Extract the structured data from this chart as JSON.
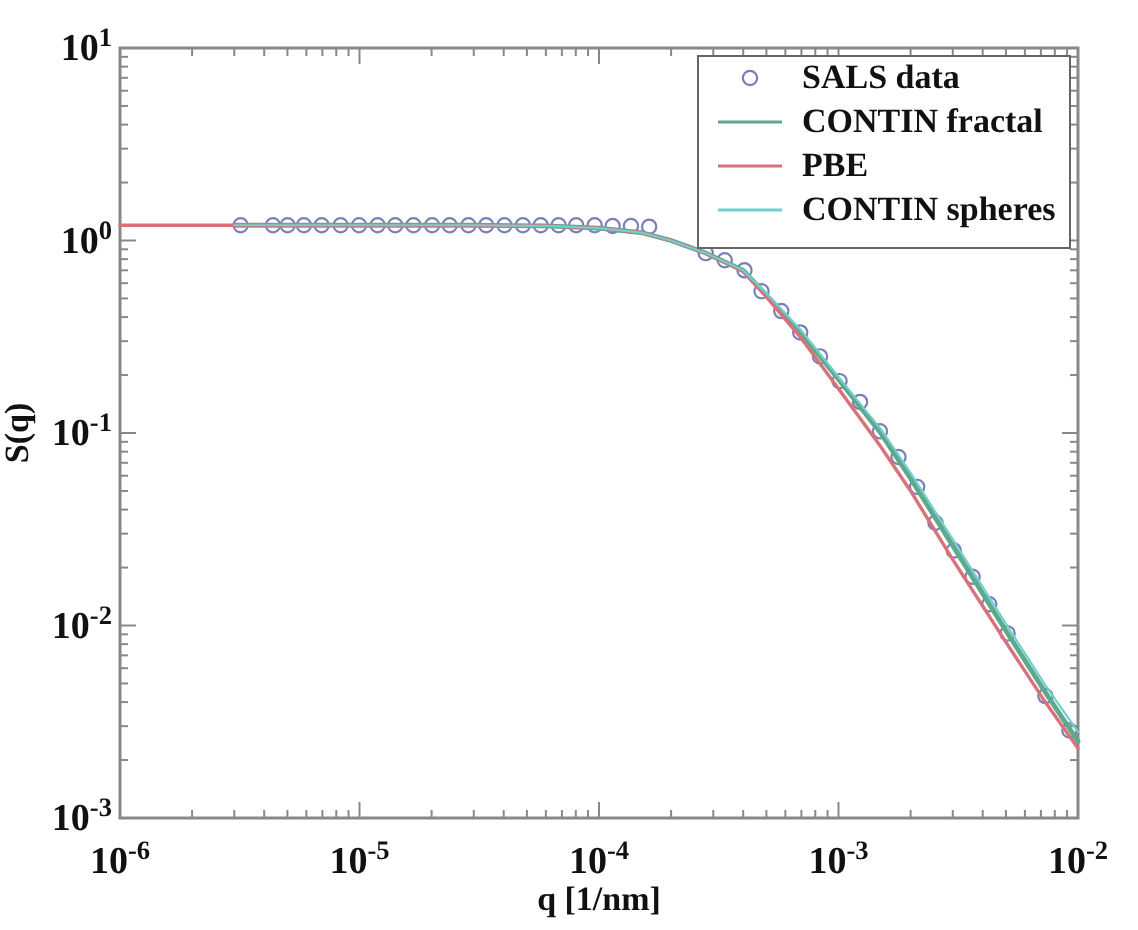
{
  "chart_data": {
    "type": "line",
    "xlabel": "q [1/nm]",
    "ylabel": "S(q)",
    "log": "xy",
    "legend": "top right",
    "grid": false,
    "xlim": [
      1e-06,
      0.01
    ],
    "ylim": [
      0.001,
      10
    ],
    "xticks": [
      {
        "value": 1e-06,
        "label": "10$^{-6}$"
      },
      {
        "value": 2e-06,
        "label": null
      },
      {
        "value": 3e-06,
        "label": null
      },
      {
        "value": 4e-06,
        "label": null
      },
      {
        "value": 5e-06,
        "label": null
      },
      {
        "value": 6e-06,
        "label": null
      },
      {
        "value": 7e-06,
        "label": null
      },
      {
        "value": 8e-06,
        "label": null
      },
      {
        "value": 9e-06,
        "label": null
      },
      {
        "value": 1e-05,
        "label": "10$^{-5}$"
      },
      {
        "value": 2e-05,
        "label": null
      },
      {
        "value": 3e-05,
        "label": null
      },
      {
        "value": 4e-05,
        "label": null
      },
      {
        "value": 5e-05,
        "label": null
      },
      {
        "value": 6e-05,
        "label": null
      },
      {
        "value": 7e-05,
        "label": null
      },
      {
        "value": 8e-05,
        "label": null
      },
      {
        "value": 9e-05,
        "label": null
      },
      {
        "value": 0.0001,
        "label": "10$^{-4}$"
      },
      {
        "value": 0.0002,
        "label": null
      },
      {
        "value": 0.0003,
        "label": null
      },
      {
        "value": 0.0004,
        "label": null
      },
      {
        "value": 0.0005,
        "label": null
      },
      {
        "value": 0.0006,
        "label": null
      },
      {
        "value": 0.0007,
        "label": null
      },
      {
        "value": 0.0008,
        "label": null
      },
      {
        "value": 0.0009,
        "label": null
      },
      {
        "value": 0.001,
        "label": "10$^{-3}$"
      },
      {
        "value": 0.002,
        "label": null
      },
      {
        "value": 0.003,
        "label": null
      },
      {
        "value": 0.004,
        "label": null
      },
      {
        "value": 0.005,
        "label": null
      },
      {
        "value": 0.006,
        "label": null
      },
      {
        "value": 0.007,
        "label": null
      },
      {
        "value": 0.008,
        "label": null
      },
      {
        "value": 0.009,
        "label": null
      },
      {
        "value": 0.01,
        "label": "10$^{-2}$"
      }
    ],
    "yticks": [
      {
        "value": 0.001,
        "label": "10$^{-3}$"
      },
      {
        "value": 0.002,
        "label": null
      },
      {
        "value": 0.003,
        "label": null
      },
      {
        "value": 0.004,
        "label": null
      },
      {
        "value": 0.005,
        "label": null
      },
      {
        "value": 0.006,
        "label": null
      },
      {
        "value": 0.007,
        "label": null
      },
      {
        "value": 0.008,
        "label": null
      },
      {
        "value": 0.009,
        "label": null
      },
      {
        "value": 0.01,
        "label": "10$^{-2}$"
      },
      {
        "value": 0.02,
        "label": null
      },
      {
        "value": 0.03,
        "label": null
      },
      {
        "value": 0.04,
        "label": null
      },
      {
        "value": 0.05,
        "label": null
      },
      {
        "value": 0.06,
        "label": null
      },
      {
        "value": 0.07,
        "label": null
      },
      {
        "value": 0.08,
        "label": null
      },
      {
        "value": 0.09,
        "label": null
      },
      {
        "value": 0.1,
        "label": "10$^{-1}$"
      },
      {
        "value": 0.2,
        "label": null
      },
      {
        "value": 0.3,
        "label": null
      },
      {
        "value": 0.4,
        "label": null
      },
      {
        "value": 0.5,
        "label": null
      },
      {
        "value": 0.6,
        "label": null
      },
      {
        "value": 0.7,
        "label": null
      },
      {
        "value": 0.8,
        "label": null
      },
      {
        "value": 0.9,
        "label": null
      },
      {
        "value": 1,
        "label": "10$^{0}$"
      },
      {
        "value": 2,
        "label": null
      },
      {
        "value": 3,
        "label": null
      },
      {
        "value": 4,
        "label": null
      },
      {
        "value": 5,
        "label": null
      },
      {
        "value": 6,
        "label": null
      },
      {
        "value": 7,
        "label": null
      },
      {
        "value": 8,
        "label": null
      },
      {
        "value": 9,
        "label": null
      },
      {
        "value": 10,
        "label": "10$^{1}$"
      }
    ],
    "series": [
      {
        "name": "SALS data",
        "type": "scatter",
        "marker": "circle",
        "color": "#7a7fb8",
        "x": [
          3.19e-06,
          4.35e-06,
          5.01e-06,
          5.86e-06,
          6.95e-06,
          8.34e-06,
          9.96e-06,
          1.19e-05,
          1.41e-05,
          1.68e-05,
          2.01e-05,
          2.38e-05,
          2.85e-05,
          3.38e-05,
          4.03e-05,
          4.81e-05,
          5.71e-05,
          6.78e-05,
          8.03e-05,
          9.59e-05,
          0.000114,
          0.000136,
          0.000162,
          0.000279,
          0.000335,
          0.000405,
          0.000477,
          0.000577,
          0.000692,
          0.000837,
          0.00101,
          0.00123,
          0.00149,
          0.00178,
          0.00213,
          0.00254,
          0.00303,
          0.00363,
          0.00426,
          0.00508,
          0.00731,
          0.00921
        ],
        "values": [
          1.2,
          1.2,
          1.2,
          1.2,
          1.2,
          1.2,
          1.2,
          1.2,
          1.2,
          1.2,
          1.2,
          1.2,
          1.2,
          1.2,
          1.2,
          1.2,
          1.2,
          1.2,
          1.2,
          1.2,
          1.19,
          1.19,
          1.18,
          0.86,
          0.79,
          0.7,
          0.545,
          0.43,
          0.333,
          0.25,
          0.186,
          0.145,
          0.102,
          0.075,
          0.0525,
          0.0342,
          0.0245,
          0.0179,
          0.0129,
          0.0091,
          0.0043,
          0.00285
        ]
      },
      {
        "name": "CONTIN fractal",
        "marker": "none",
        "line_style": "solid",
        "color": "#5fa88a",
        "x": [
          3e-06,
          1e-05,
          3e-05,
          6e-05,
          0.0001,
          0.00015,
          0.0002,
          0.000279,
          0.0004,
          0.0005,
          0.0007,
          0.001,
          0.0015,
          0.002,
          0.003,
          0.005,
          0.0073,
          0.01
        ],
        "values": [
          1.2,
          1.2,
          1.2,
          1.19,
          1.16,
          1.1,
          1.0,
          0.86,
          0.7,
          0.52,
          0.33,
          0.19,
          0.1,
          0.058,
          0.026,
          0.0094,
          0.0045,
          0.0025
        ]
      },
      {
        "name": "PBE",
        "marker": "none",
        "line_style": "solid",
        "color": "#d9707a",
        "x": [
          1e-06,
          1e-05,
          3e-05,
          6e-05,
          0.0001,
          0.00015,
          0.0002,
          0.000279,
          0.0004,
          0.0005,
          0.0007,
          0.001,
          0.0015,
          0.002,
          0.003,
          0.005,
          0.0073,
          0.01
        ],
        "values": [
          1.2,
          1.2,
          1.2,
          1.19,
          1.16,
          1.1,
          1.0,
          0.86,
          0.69,
          0.51,
          0.31,
          0.17,
          0.085,
          0.05,
          0.022,
          0.0082,
          0.004,
          0.0023
        ]
      },
      {
        "name": "CONTIN spheres",
        "marker": "none",
        "line_style": "solid",
        "color": "#6fd0d0",
        "x": [
          3e-06,
          1e-05,
          3e-05,
          6e-05,
          0.0001,
          0.00015,
          0.0002,
          0.000279,
          0.0004,
          0.0005,
          0.0007,
          0.001,
          0.0015,
          0.002,
          0.003,
          0.005,
          0.0073,
          0.01
        ],
        "values": [
          1.2,
          1.2,
          1.2,
          1.19,
          1.16,
          1.1,
          1.0,
          0.86,
          0.7,
          0.53,
          0.34,
          0.195,
          0.105,
          0.062,
          0.028,
          0.0102,
          0.0049,
          0.0028
        ]
      }
    ]
  }
}
